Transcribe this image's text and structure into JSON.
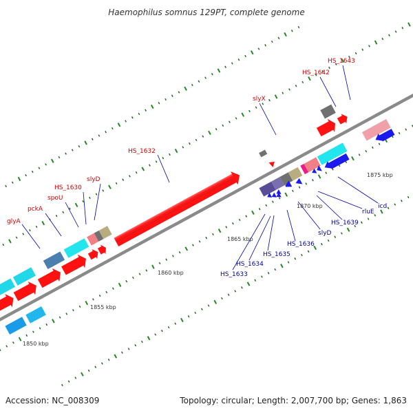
{
  "header": {
    "title": "Haemophilus somnus 129PT, complete genome"
  },
  "footer": {
    "accession": "Accession: NC_008309",
    "summary": "Topology: circular; Length: 2,007,700 bp; Genes: 1,863"
  },
  "colors": {
    "forward_gene": "#ff1111",
    "reverse_gene": "#1a1aee",
    "cyan_gene": "#22e5ee",
    "steelblue_gene": "#4a7fb0",
    "pink_gene": "#f07f86",
    "gray_gene": "#707070",
    "khaki_gene": "#b9ad80",
    "slate_gene": "#5a4d98",
    "magenta_gene": "#ee1b8c",
    "backbone": "#8a8a8a",
    "tick_major": "#228822",
    "tick_minor": "#226622",
    "label_top": "#cc0000",
    "label_bottom": "#000099"
  },
  "scale_labels": [
    "1850 kbp",
    "1855 kbp",
    "1860 kbp",
    "1865 kbp",
    "1870 kbp",
    "1875 kbp"
  ],
  "gene_labels_top": [
    "glyA",
    "pckA",
    "spoU",
    "HS_1630",
    "slyD",
    "HS_1632",
    "slyX",
    "HS_1642",
    "HS_1643"
  ],
  "gene_labels_bottom": [
    "HS_1633",
    "HS_1634",
    "HS_1635",
    "HS_1636",
    "slyD",
    "HS_1639",
    "rluE",
    "icd"
  ]
}
